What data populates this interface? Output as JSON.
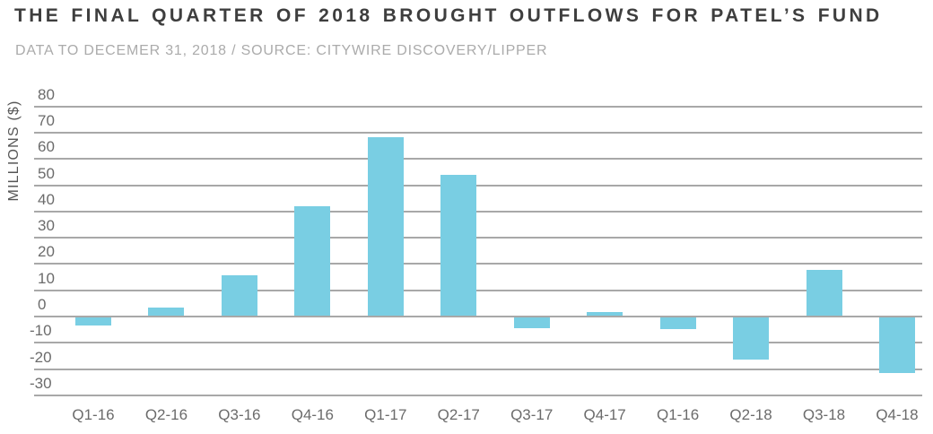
{
  "header": {
    "title": "THE FINAL QUARTER OF 2018 BROUGHT OUTFLOWS FOR PATEL’S FUND",
    "subtitle": "DATA TO DECEMER 31, 2018 / SOURCE: CITYWIRE DISCOVERY/LIPPER"
  },
  "chart_data": {
    "type": "bar",
    "title": "THE FINAL QUARTER OF 2018 BROUGHT OUTFLOWS FOR PATEL’S FUND",
    "subtitle": "DATA TO DECEMER 31, 2018 / SOURCE: CITYWIRE DISCOVERY/LIPPER",
    "xlabel": "",
    "ylabel": "MILLIONS ($)",
    "categories": [
      "Q1-16",
      "Q2-16",
      "Q3-16",
      "Q4-16",
      "Q1-17",
      "Q2-17",
      "Q3-17",
      "Q4-17",
      "Q1-16",
      "Q2-18",
      "Q3-18",
      "Q4-18"
    ],
    "values": [
      -3,
      3,
      15.5,
      41.5,
      68,
      53.5,
      -4,
      1.5,
      -4.5,
      -16,
      17.5,
      -21
    ],
    "ylim": [
      -30,
      80
    ],
    "ytick_interval": 10,
    "grid": true,
    "legend": false
  },
  "colors": {
    "bar": "#79cee3",
    "gridline": "#a8a8a8",
    "tick_label": "#6b6b6b",
    "title": "#3e3e3e",
    "subtitle": "#ababab",
    "y_axis_title": "#565656"
  }
}
